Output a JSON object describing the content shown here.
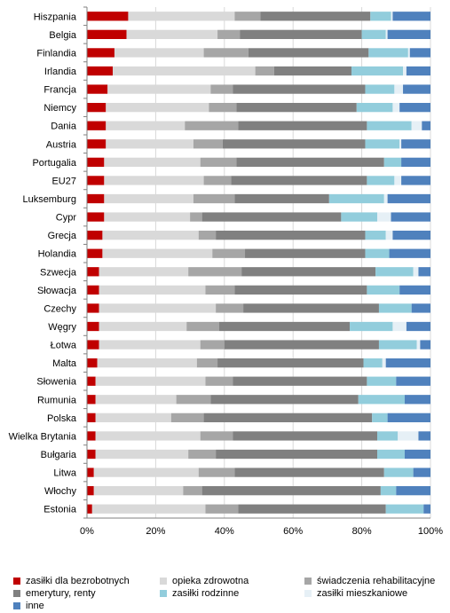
{
  "chart_data": {
    "type": "bar",
    "orientation": "horizontal",
    "stacked": true,
    "normalized": true,
    "title": "",
    "xlabel": "",
    "ylabel": "",
    "xlim": [
      0,
      100
    ],
    "xticks": [
      "0%",
      "20%",
      "40%",
      "60%",
      "80%",
      "100%"
    ],
    "grid": true,
    "legend_position": "bottom",
    "categories": [
      "Hiszpania",
      "Belgia",
      "Finlandia",
      "Irlandia",
      "Francja",
      "Niemcy",
      "Dania",
      "Austria",
      "Portugalia",
      "EU27",
      "Luksemburg",
      "Cypr",
      "Grecja",
      "Holandia",
      "Szwecja",
      "Słowacja",
      "Czechy",
      "Węgry",
      "Łotwa",
      "Malta",
      "Słowenia",
      "Rumunia",
      "Polska",
      "Wielka Brytania",
      "Bułgaria",
      "Litwa",
      "Włochy",
      "Estonia"
    ],
    "series": [
      {
        "name": "zasiłki dla bezrobotnych",
        "color": "#c00000",
        "values": [
          12,
          11.5,
          8,
          7.5,
          6,
          5.5,
          5.5,
          5.5,
          5,
          5,
          5,
          5,
          4.5,
          4.5,
          3.5,
          3.5,
          3.5,
          3.5,
          3.5,
          3,
          2.5,
          2.5,
          2.5,
          2.5,
          2.5,
          2,
          2,
          1.5
        ]
      },
      {
        "name": "opieka zdrowotna",
        "color": "#d9d9d9",
        "values": [
          31,
          26.5,
          26,
          41.5,
          30,
          30,
          23,
          25.5,
          28,
          29,
          26,
          25,
          28,
          32,
          26,
          31,
          34,
          25.5,
          29.5,
          29,
          32,
          23.5,
          22,
          30.5,
          27,
          30.5,
          26,
          33
        ]
      },
      {
        "name": "świadczenia rehabilitacyjne",
        "color": "#a6a6a6",
        "values": [
          7.5,
          6.5,
          13,
          5.5,
          6.5,
          8,
          15.5,
          8.5,
          10.5,
          8,
          12,
          3.5,
          5,
          9.5,
          15.5,
          8.5,
          8,
          9.5,
          7,
          6,
          8,
          10,
          9.5,
          9.5,
          8,
          10.5,
          5.5,
          9.5
        ]
      },
      {
        "name": "emerytury, renty",
        "color": "#808080",
        "values": [
          32,
          35.5,
          35,
          22.5,
          38.5,
          35,
          37.5,
          41.5,
          43,
          39.5,
          27.5,
          40.5,
          43.5,
          35,
          39,
          38.5,
          39.5,
          38,
          45,
          42.5,
          39,
          43,
          49,
          42,
          47,
          43.5,
          52,
          43
        ]
      },
      {
        "name": "zasiłki rodzinne",
        "color": "#92cddc",
        "values": [
          6,
          7,
          11.5,
          15,
          8.5,
          10.5,
          13,
          10,
          5,
          8,
          16,
          10.5,
          6,
          7,
          11,
          9.5,
          9.5,
          12.5,
          11,
          5.5,
          8.5,
          13.5,
          4.5,
          6,
          8,
          8.5,
          4.5,
          11
        ]
      },
      {
        "name": "zasiłki mieszkaniowe",
        "color": "#e6f0f6",
        "values": [
          0.5,
          0.5,
          0.5,
          1,
          2.5,
          2,
          3,
          0.5,
          0,
          2,
          1,
          4,
          2,
          0,
          1.5,
          0,
          0,
          4,
          1,
          1,
          0,
          0,
          0,
          6,
          0,
          0,
          0,
          0
        ]
      },
      {
        "name": "inne",
        "color": "#4f81bd",
        "values": [
          11,
          12.5,
          6,
          7,
          8,
          9,
          2.5,
          8.5,
          8.5,
          8.5,
          12.5,
          11.5,
          11,
          12,
          3.5,
          9,
          5.5,
          7,
          3,
          13,
          10,
          7.5,
          12.5,
          3.5,
          7.5,
          5,
          10,
          2
        ]
      }
    ]
  }
}
